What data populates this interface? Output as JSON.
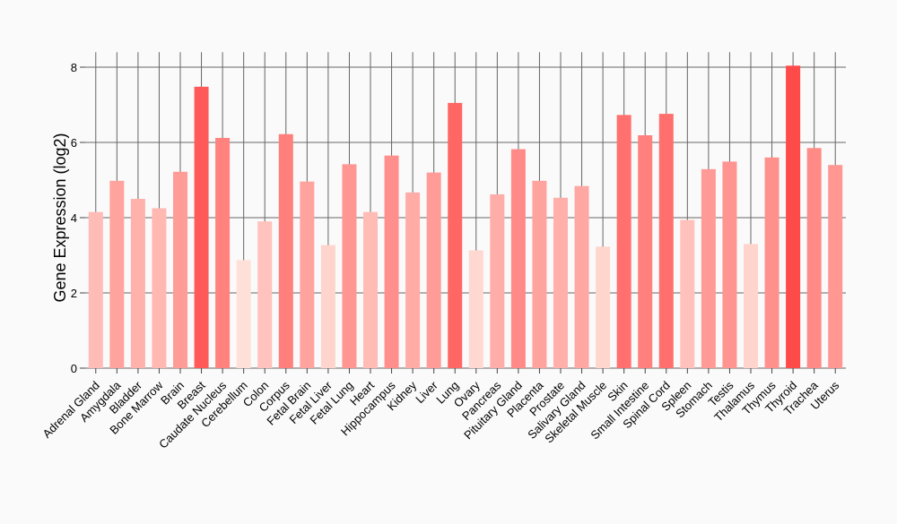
{
  "chart_data": {
    "type": "bar",
    "title": "",
    "xlabel": "",
    "ylabel": "Gene Expression (log2)",
    "ylim": [
      0,
      8.4
    ],
    "yticks": [
      "0",
      "2",
      "4",
      "6",
      "8"
    ],
    "grid": true,
    "categories": [
      "Adrenal Gland",
      "Amygdala",
      "Bladder",
      "Bone Marrow",
      "Brain",
      "Breast",
      "Caudate Nucleus",
      "Cerebellum",
      "Colon",
      "Corpus",
      "Fetal Brain",
      "Fetal Liver",
      "Fetal Lung",
      "Heart",
      "Hippocampus",
      "Kidney",
      "Liver",
      "Lung",
      "Ovary",
      "Pancreas",
      "Pituitary Gland",
      "Placenta",
      "Prostate",
      "Salivary Gland",
      "Skeletal Muscle",
      "Skin",
      "Small Intestine",
      "Spinal Cord",
      "Spleen",
      "Stomach",
      "Testis",
      "Thalamus",
      "Thymus",
      "Thyroid",
      "Trachea",
      "Uterus"
    ],
    "values": [
      4.15,
      4.98,
      4.5,
      4.25,
      5.22,
      7.48,
      6.12,
      2.87,
      3.9,
      6.22,
      4.96,
      3.27,
      5.42,
      4.15,
      5.65,
      4.67,
      5.2,
      7.05,
      3.13,
      4.62,
      5.82,
      4.98,
      4.53,
      4.84,
      3.23,
      6.73,
      6.19,
      6.76,
      3.94,
      5.29,
      5.49,
      3.3,
      5.6,
      8.04,
      5.85,
      5.4
    ],
    "color_scale": {
      "low": "#ffe0d8",
      "high": "#ff4a4a"
    }
  }
}
